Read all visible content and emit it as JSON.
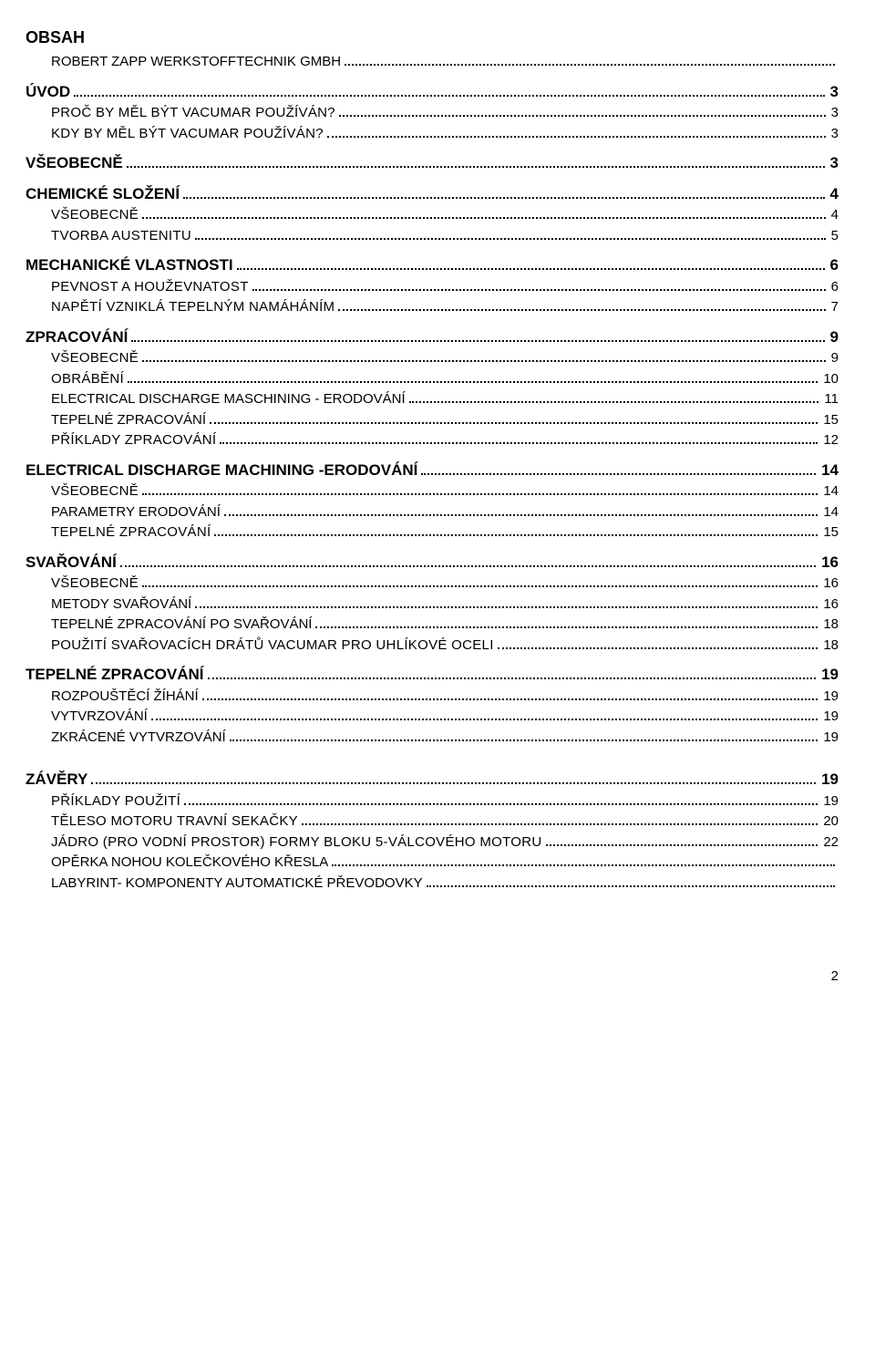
{
  "headingText": "OBSAH",
  "subheadText": "ROBERT  ZAPP WERKSTOFFTECHNIK GMBH",
  "entries": [
    {
      "level": 1,
      "text": "ÚVOD",
      "page": "3",
      "smallcaps": false
    },
    {
      "level": 2,
      "text": "PROČ BY MĚL BÝT VACUMAR POUŽÍVÁN?",
      "page": "3",
      "smallcaps": true
    },
    {
      "level": 2,
      "text": "KDY BY MĚL BÝT VACUMAR POUŽÍVÁN?",
      "page": "3",
      "smallcaps": true
    },
    {
      "level": 1,
      "text": "VŠEOBECNĚ",
      "page": "3",
      "smallcaps": false
    },
    {
      "level": 1,
      "text": "CHEMICKÉ SLOŽENÍ",
      "page": "4",
      "smallcaps": false
    },
    {
      "level": 2,
      "text": "VŠEOBECNĚ",
      "page": "4",
      "smallcaps": true
    },
    {
      "level": 2,
      "text": "TVORBA AUSTENITU",
      "page": "5",
      "smallcaps": true
    },
    {
      "level": 1,
      "text": "MECHANICKÉ VLASTNOSTI",
      "page": "6",
      "smallcaps": false
    },
    {
      "level": 2,
      "text": "PEVNOST A HOUŽEVNATOST",
      "page": "6",
      "smallcaps": true
    },
    {
      "level": 2,
      "text": "NAPĚTÍ VZNIKLÁ TEPELNÝM NAMÁHÁNÍM",
      "page": "7",
      "smallcaps": true
    },
    {
      "level": 1,
      "text": "ZPRACOVÁNÍ",
      "page": "9",
      "smallcaps": false
    },
    {
      "level": 2,
      "text": "VŠEOBECNĚ",
      "page": "9",
      "smallcaps": true
    },
    {
      "level": 2,
      "text": "OBRÁBĚNÍ",
      "page": "10",
      "smallcaps": true
    },
    {
      "level": 2,
      "text": "ELECTRICAL DISCHARGE MASCHINING - ERODOVÁNÍ",
      "page": "11",
      "smallcaps": false
    },
    {
      "level": 2,
      "text": "TEPELNÉ ZPRACOVÁNÍ",
      "page": "15",
      "smallcaps": false
    },
    {
      "level": 2,
      "text": "PŘÍKLADY ZPRACOVÁNÍ",
      "page": "12",
      "smallcaps": true
    },
    {
      "level": 1,
      "text": "ELECTRICAL DISCHARGE MACHINING -ERODOVÁNÍ",
      "page": "14",
      "smallcaps": false
    },
    {
      "level": 2,
      "text": "VŠEOBECNĚ",
      "page": "14",
      "smallcaps": true
    },
    {
      "level": 2,
      "text": "PARAMETRY ERODOVÁNÍ",
      "page": "14",
      "smallcaps": false
    },
    {
      "level": 2,
      "text": "TEPELNÉ ZPRACOVÁNÍ",
      "page": "15",
      "smallcaps": true
    },
    {
      "level": 1,
      "text": "SVAŘOVÁNÍ",
      "page": "16",
      "smallcaps": false
    },
    {
      "level": 2,
      "text": "VŠEOBECNĚ",
      "page": "16",
      "smallcaps": true
    },
    {
      "level": 2,
      "text": "METODY SVAŘOVÁNÍ",
      "page": "16",
      "smallcaps": false
    },
    {
      "level": 2,
      "text": "TEPELNÉ ZPRACOVÁNÍ PO SVAŘOVÁNÍ",
      "page": "18",
      "smallcaps": false
    },
    {
      "level": 2,
      "text": "POUŽITÍ SVAŘOVACÍCH DRÁTŮ VACUMAR PRO UHLÍKOVÉ OCELI",
      "page": "18",
      "smallcaps": true
    },
    {
      "level": 1,
      "text": "TEPELNÉ ZPRACOVÁNÍ",
      "page": "19",
      "smallcaps": false
    },
    {
      "level": 2,
      "text": "ROZPOUŠTĚCÍ ŽÍHÁNÍ",
      "page": "19",
      "smallcaps": false
    },
    {
      "level": 2,
      "text": "VYTVRZOVÁNÍ",
      "page": "19",
      "smallcaps": false
    },
    {
      "level": 2,
      "text": "ZKRÁCENÉ VYTVRZOVÁNÍ",
      "page": "19",
      "smallcaps": false
    },
    {
      "level": 1,
      "text": "ZÁVĚRY",
      "page": "19",
      "smallcaps": false,
      "bigGapBefore": true
    },
    {
      "level": 2,
      "text": "PŘÍKLADY POUŽITÍ",
      "page": "19",
      "smallcaps": true
    },
    {
      "level": 2,
      "text": "TĚLESO MOTORU TRAVNÍ SEKAČKY",
      "page": "20",
      "smallcaps": true
    },
    {
      "level": 2,
      "text": "JÁDRO (PRO VODNÍ PROSTOR) FORMY BLOKU 5-VÁLCOVÉHO MOTORU",
      "page": "22",
      "smallcaps": true
    },
    {
      "level": 2,
      "text": "OPĚRKA NOHOU KOLEČKOVÉHO KŘESLA",
      "page": "",
      "smallcaps": false
    },
    {
      "level": 2,
      "text": "LABYRINT- KOMPONENTY  AUTOMATICKÉ PŘEVODOVKY",
      "page": "",
      "smallcaps": false
    }
  ],
  "pageNumber": "2"
}
